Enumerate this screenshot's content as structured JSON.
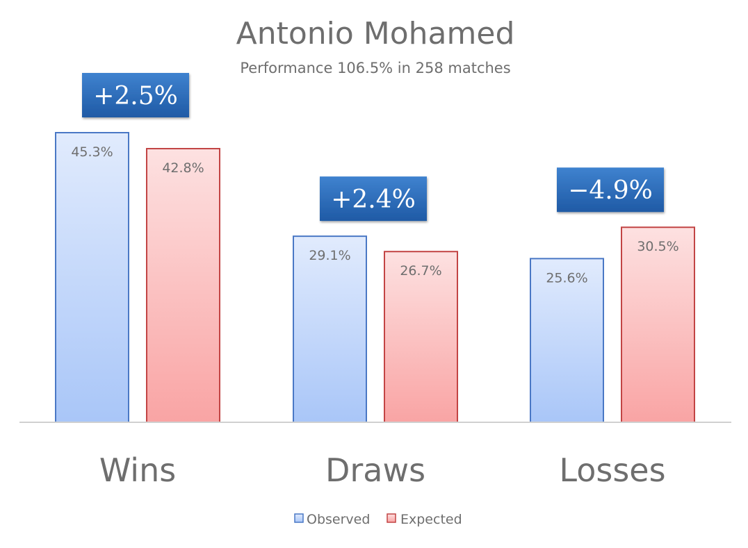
{
  "chart_data": {
    "type": "bar",
    "title": "Antonio Mohamed",
    "subtitle": "Performance 106.5% in 258 matches",
    "categories": [
      "Wins",
      "Draws",
      "Losses"
    ],
    "series": [
      {
        "name": "Observed",
        "values": [
          45.3,
          29.1,
          25.6
        ],
        "labels": [
          "45.3%",
          "29.1%",
          "25.6%"
        ]
      },
      {
        "name": "Expected",
        "values": [
          42.8,
          26.7,
          30.5
        ],
        "labels": [
          "42.8%",
          "26.7%",
          "30.5%"
        ]
      }
    ],
    "differences": [
      "+2.5%",
      "+2.4%",
      "−4.9%"
    ],
    "ylim": [
      0,
      45.3
    ],
    "grid": false,
    "legend": "bottom",
    "colors": {
      "observed_fill_top": "#e1ebfd",
      "observed_fill_bottom": "#a9c6f8",
      "observed_stroke": "#4a78c5",
      "expected_fill_top": "#fde1e1",
      "expected_fill_bottom": "#f9a4a4",
      "expected_stroke": "#c24444",
      "badge_fill_top": "#3f82cf",
      "badge_fill_bottom": "#1f5aa5",
      "text": "#6e6e6e",
      "axis": "#d0d0d0"
    }
  }
}
